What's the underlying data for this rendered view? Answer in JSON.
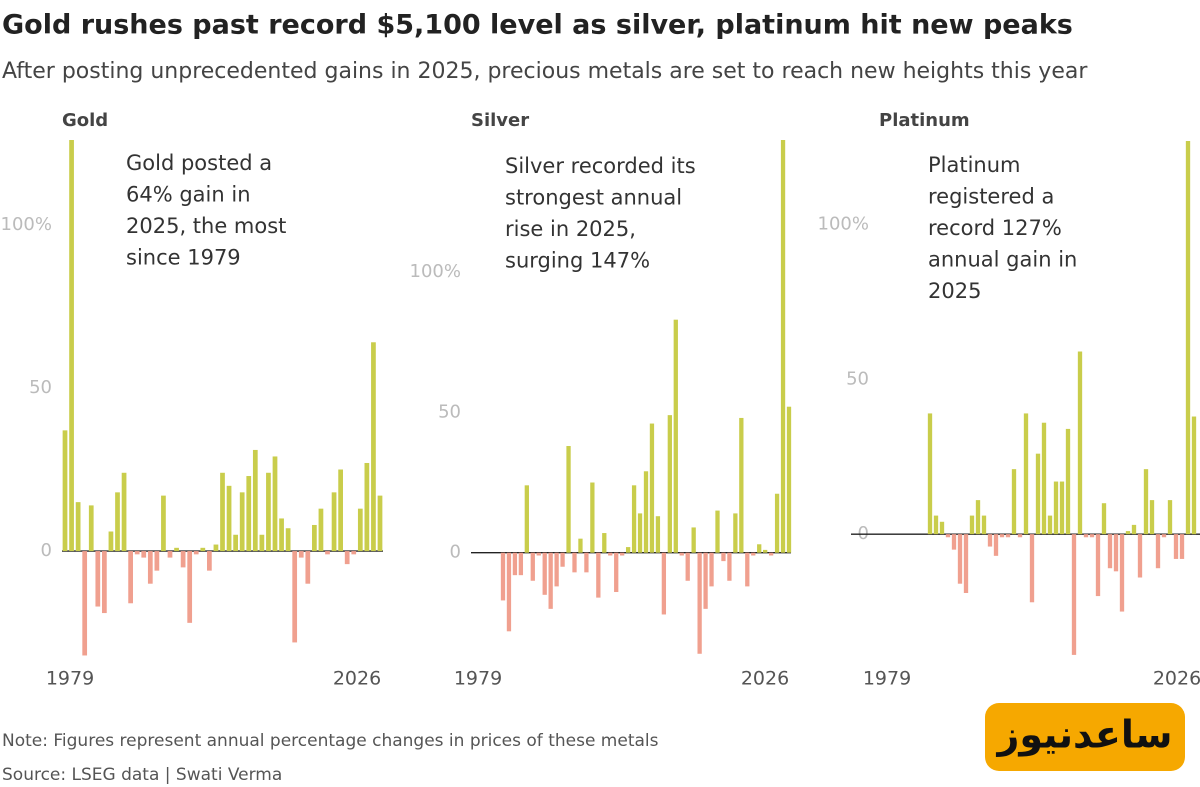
{
  "chart_data": [
    {
      "type": "bar",
      "title": "Gold rushes past record $5,100 level as silver, platinum hit new peaks",
      "subtitle": "After posting unprecedented gains in 2025, precious metals are set to reach new heights this year",
      "panel_title": "Gold",
      "annotation": [
        "Gold posted a",
        "64% gain in",
        "2025, the most",
        "since 1979"
      ],
      "xlabels": [
        "1979",
        "2026"
      ],
      "values": [
        37,
        126,
        15,
        -32,
        14,
        -17,
        -19,
        6,
        18,
        24,
        -16,
        -1,
        -2,
        -10,
        -6,
        17,
        -2,
        1,
        -5,
        -22,
        -1,
        1,
        -6,
        2,
        24,
        20,
        5,
        18,
        23,
        31,
        5,
        24,
        29,
        10,
        7,
        -28,
        -2,
        -10,
        8,
        13,
        -1,
        18,
        25,
        -4,
        -1,
        13,
        27,
        64,
        17
      ],
      "ylim": [
        -34,
        126
      ],
      "yticks": [
        0,
        50,
        {
          "value": 100,
          "label": "100%"
        }
      ],
      "colors": {
        "positive": "#c9cd4b",
        "negative": "#f0a08f"
      }
    },
    {
      "type": "bar",
      "panel_title": "Silver",
      "annotation": [
        "Silver recorded its",
        "strongest annual",
        "rise in 2025,",
        "surging 147%"
      ],
      "xlabels": [
        "1979",
        "2026"
      ],
      "values": [
        -17,
        -28,
        -8,
        -8,
        24,
        -10,
        -1,
        -15,
        -20,
        -12,
        -5,
        38,
        -7,
        5,
        -7,
        25,
        -16,
        7,
        -1,
        -14,
        -1,
        2,
        24,
        14,
        29,
        46,
        13,
        -22,
        49,
        83,
        -1,
        -10,
        9,
        -36,
        -20,
        -12,
        15,
        -3,
        -10,
        14,
        48,
        -12,
        -1,
        3,
        1,
        -1,
        21,
        147,
        52
      ],
      "ylim": [
        -40,
        147
      ],
      "yticks": [
        0,
        50,
        {
          "value": 100,
          "label": "100%"
        }
      ],
      "colors": {
        "positive": "#c9cd4b",
        "negative": "#f0a08f"
      }
    },
    {
      "type": "bar",
      "panel_title": "Platinum",
      "annotation": [
        "Platinum",
        "registered a",
        "record 127%",
        "annual gain in",
        "2025"
      ],
      "xlabels": [
        "1979",
        "2026"
      ],
      "values": [
        39,
        6,
        4,
        -1,
        -5,
        -16,
        -19,
        6,
        11,
        6,
        -4,
        -7,
        -1,
        -1,
        21,
        -1,
        39,
        -22,
        26,
        36,
        6,
        17,
        17,
        34,
        -39,
        59,
        -1,
        -1,
        -20,
        10,
        -11,
        -12,
        -25,
        1,
        3,
        -14,
        21,
        11,
        -11,
        -1,
        11,
        -8,
        -8,
        127,
        38
      ],
      "ylim": [
        -40,
        127
      ],
      "yticks": [
        0,
        50,
        {
          "value": 100,
          "label": "100%"
        }
      ],
      "colors": {
        "positive": "#c9cd4b",
        "negative": "#f0a08f"
      }
    }
  ],
  "footer": {
    "note": "Note: Figures represent annual percentage changes in prices of these metals",
    "source": "Source: LSEG data | Swati Verma"
  },
  "watermark": "ساعدنیوز"
}
